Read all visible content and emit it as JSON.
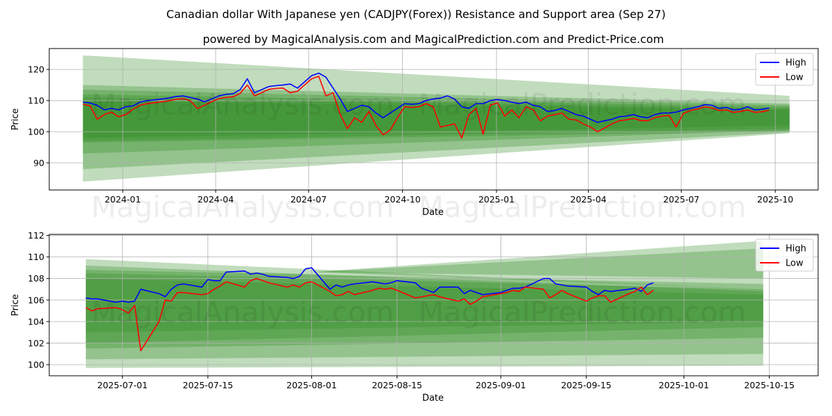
{
  "title": "Canadian dollar With Japanese yen (CADJPY(Forex)) Resistance and Support area (Sep 27)",
  "subtitle": "powered by MagicalAnalysis.com and MagicalPrediction.com and Predict-Price.com",
  "watermarks": [
    "MagicalAnalysis.com",
    "MagicalPrediction.com"
  ],
  "colors": {
    "high": "#0000ff",
    "low": "#ff0000",
    "band": "#2e8b22",
    "grid": "#b0b0b0"
  },
  "chart_data": [
    {
      "type": "line",
      "xlabel": "Date",
      "ylabel": "Price",
      "xlim": [
        "2023-10-21",
        "2025-11-12"
      ],
      "ylim": [
        81.3,
        126.7
      ],
      "grid": true,
      "legend": {
        "placement": "top-right",
        "entries": [
          "High",
          "Low"
        ]
      },
      "xticks": [
        {
          "date": "2024-01-01",
          "label": "2024-01"
        },
        {
          "date": "2024-04-01",
          "label": "2024-04"
        },
        {
          "date": "2024-07-01",
          "label": "2024-07"
        },
        {
          "date": "2024-10-01",
          "label": "2024-10"
        },
        {
          "date": "2025-01-01",
          "label": "2025-01"
        },
        {
          "date": "2025-04-01",
          "label": "2025-04"
        },
        {
          "date": "2025-07-01",
          "label": "2025-07"
        },
        {
          "date": "2025-10-01",
          "label": "2025-10"
        }
      ],
      "yticks": [
        90,
        100,
        110,
        120
      ],
      "bands": [
        {
          "start": "2023-11-23",
          "end": "2025-10-15",
          "upper": [
            124.5,
            111.5
          ],
          "lower": [
            96.5,
            100.2
          ]
        },
        {
          "start": "2023-11-23",
          "end": "2025-10-15",
          "upper": [
            115.0,
            109.0
          ],
          "lower": [
            93.0,
            100.5
          ]
        },
        {
          "start": "2023-11-23",
          "end": "2025-10-15",
          "upper": [
            113.5,
            108.5
          ],
          "lower": [
            97.0,
            101.0
          ]
        },
        {
          "start": "2023-11-23",
          "end": "2025-10-15",
          "upper": [
            112.0,
            108.0
          ],
          "lower": [
            88.0,
            99.8
          ]
        },
        {
          "start": "2023-11-23",
          "end": "2025-10-15",
          "upper": [
            111.0,
            107.5
          ],
          "lower": [
            84.0,
            99.5
          ]
        },
        {
          "start": "2023-11-23",
          "end": "2025-10-15",
          "upper": [
            110.0,
            107.0
          ],
          "lower": [
            98.0,
            102.0
          ]
        }
      ],
      "x_start": "2023-11-23",
      "x_step_days": 7,
      "series": [
        {
          "name": "High",
          "values": [
            109.5,
            109.2,
            108.5,
            107.0,
            107.5,
            107.0,
            108.0,
            108.3,
            109.5,
            110.0,
            110.2,
            110.5,
            110.8,
            111.3,
            111.5,
            111.0,
            110.5,
            109.6,
            110.5,
            111.5,
            112.0,
            112.2,
            113.5,
            117.0,
            112.5,
            113.5,
            114.5,
            114.8,
            115.0,
            115.3,
            114.0,
            116.0,
            118.0,
            118.8,
            117.5,
            114.0,
            110.5,
            106.5,
            107.5,
            108.5,
            108.0,
            106.0,
            104.5,
            106.0,
            107.5,
            109.0,
            108.8,
            109.0,
            110.0,
            110.5,
            110.8,
            111.5,
            110.5,
            108.0,
            107.5,
            109.0,
            109.0,
            110.0,
            110.3,
            110.0,
            109.5,
            109.0,
            109.5,
            108.5,
            108.0,
            106.5,
            106.8,
            107.5,
            106.5,
            105.5,
            105.0,
            104.0,
            103.0,
            103.5,
            104.0,
            104.8,
            105.0,
            105.5,
            104.8,
            104.5,
            105.5,
            106.0,
            106.0,
            106.3,
            107.0,
            107.5,
            108.0,
            108.7,
            108.5,
            107.5,
            107.8,
            107.0,
            107.2,
            108.0,
            107.0,
            107.2,
            107.6
          ]
        },
        {
          "name": "Low",
          "values": [
            108.8,
            108.3,
            104.0,
            105.5,
            106.3,
            104.8,
            105.5,
            107.2,
            108.5,
            109.0,
            109.3,
            109.6,
            109.9,
            110.4,
            110.6,
            110.0,
            107.5,
            108.5,
            109.6,
            110.6,
            111.0,
            111.2,
            112.3,
            115.0,
            111.5,
            112.5,
            113.6,
            113.9,
            114.0,
            112.5,
            113.0,
            115.0,
            117.0,
            117.8,
            111.5,
            112.5,
            105.5,
            101.0,
            104.5,
            103.0,
            106.5,
            102.0,
            99.0,
            100.5,
            104.5,
            108.0,
            107.8,
            108.0,
            109.0,
            108.0,
            101.5,
            102.0,
            102.5,
            98.0,
            105.5,
            107.5,
            99.2,
            108.5,
            109.3,
            105.0,
            107.0,
            104.5,
            108.0,
            107.0,
            103.5,
            105.0,
            105.5,
            106.0,
            104.0,
            103.8,
            102.5,
            101.5,
            100.0,
            101.2,
            102.5,
            103.5,
            103.8,
            104.3,
            103.6,
            103.5,
            104.5,
            105.0,
            105.2,
            101.5,
            105.8,
            106.8,
            107.3,
            108.0,
            107.6,
            106.8,
            107.0,
            106.2,
            106.5,
            107.0,
            106.2,
            106.4,
            106.9
          ]
        }
      ]
    },
    {
      "type": "line",
      "xlabel": "Date",
      "ylabel": "Price",
      "xlim": [
        "2025-06-19",
        "2025-10-23"
      ],
      "ylim": [
        98.97,
        112.1
      ],
      "grid": true,
      "legend": {
        "placement": "top-right",
        "entries": [
          "High",
          "Low"
        ]
      },
      "xticks": [
        {
          "date": "2025-07-01",
          "label": "2025-07-01"
        },
        {
          "date": "2025-07-15",
          "label": "2025-07-15"
        },
        {
          "date": "2025-08-01",
          "label": "2025-08-01"
        },
        {
          "date": "2025-08-15",
          "label": "2025-08-15"
        },
        {
          "date": "2025-09-01",
          "label": "2025-09-01"
        },
        {
          "date": "2025-09-15",
          "label": "2025-09-15"
        },
        {
          "date": "2025-10-01",
          "label": "2025-10-01"
        },
        {
          "date": "2025-10-15",
          "label": "2025-10-15"
        }
      ],
      "yticks": [
        100,
        102,
        104,
        106,
        108,
        110,
        112
      ],
      "bands": [
        {
          "start": "2025-06-25",
          "end": "2025-10-14",
          "upper": [
            109.8,
            107.0
          ],
          "lower": [
            99.7,
            99.9
          ]
        },
        {
          "start": "2025-06-25",
          "end": "2025-10-14",
          "upper": [
            109.2,
            106.8
          ],
          "lower": [
            100.5,
            101.0
          ]
        },
        {
          "start": "2025-06-25",
          "end": "2025-10-14",
          "upper": [
            108.8,
            107.5
          ],
          "lower": [
            101.5,
            102.5
          ]
        },
        {
          "start": "2025-06-25",
          "end": "2025-10-14",
          "upper": [
            108.5,
            107.0
          ],
          "lower": [
            102.0,
            103.5
          ]
        },
        {
          "start": "2025-06-25",
          "end": "2025-10-14",
          "upper": [
            108.0,
            106.5
          ],
          "lower": [
            103.0,
            104.0
          ]
        },
        {
          "start": "2025-08-01",
          "end": "2025-10-14",
          "upper": [
            108.6,
            111.5
          ],
          "lower": [
            108.6,
            108.0
          ]
        },
        {
          "start": "2025-08-01",
          "end": "2025-10-14",
          "upper": [
            108.6,
            110.8
          ],
          "lower": [
            108.6,
            107.0
          ]
        }
      ],
      "x_start": "2025-06-25",
      "x_step": "business-day",
      "series": [
        {
          "name": "High",
          "values": [
            106.2,
            106.1,
            106.1,
            105.8,
            105.9,
            105.8,
            105.9,
            107.0,
            106.6,
            106.3,
            107.0,
            107.4,
            107.5,
            107.2,
            107.9,
            107.8,
            107.8,
            108.6,
            108.7,
            108.4,
            108.5,
            108.4,
            108.2,
            108.1,
            108.0,
            108.2,
            108.9,
            109.0,
            107.0,
            107.4,
            107.2,
            107.4,
            107.5,
            107.7,
            107.6,
            107.5,
            107.6,
            107.8,
            107.6,
            107.1,
            106.9,
            106.7,
            107.2,
            107.2,
            106.6,
            106.9,
            106.7,
            106.5,
            106.7,
            106.9,
            107.1,
            107.1,
            107.2,
            108.0,
            108.0,
            107.5,
            107.4,
            107.3,
            107.2,
            106.8,
            106.5,
            106.9,
            106.8,
            107.0,
            107.1,
            106.8,
            107.4,
            107.6
          ]
        },
        {
          "name": "Low",
          "values": [
            105.3,
            105.0,
            105.2,
            105.3,
            105.1,
            104.8,
            105.5,
            101.3,
            104.0,
            106.0,
            105.9,
            106.7,
            106.7,
            106.5,
            106.6,
            107.0,
            107.3,
            107.7,
            107.2,
            107.8,
            108.0,
            107.8,
            107.6,
            107.2,
            107.4,
            107.2,
            107.6,
            107.7,
            106.8,
            106.4,
            106.5,
            106.8,
            106.5,
            106.9,
            107.1,
            107.0,
            107.1,
            106.9,
            106.2,
            106.3,
            106.4,
            106.5,
            106.3,
            105.9,
            106.1,
            105.6,
            105.9,
            106.3,
            106.6,
            106.7,
            106.9,
            106.8,
            107.2,
            107.0,
            106.2,
            106.5,
            106.9,
            106.6,
            105.9,
            106.2,
            106.4,
            106.4,
            105.8,
            106.6,
            106.8,
            107.2,
            106.5,
            106.9
          ]
        }
      ]
    }
  ]
}
